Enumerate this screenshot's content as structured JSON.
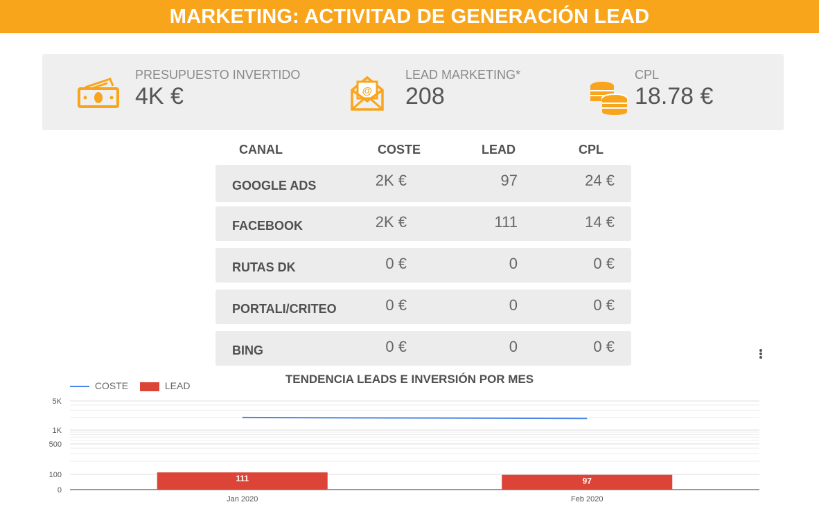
{
  "header": {
    "title": "MARKETING: ACTIVITAD DE GENERACIÓN LEAD"
  },
  "kpis": [
    {
      "label": "PRESUPUESTO INVERTIDO",
      "value": "4K €",
      "icon": "money-icon"
    },
    {
      "label": "LEAD MARKETING*",
      "value": "208",
      "icon": "email-icon"
    },
    {
      "label": "CPL",
      "value": "18.78 €",
      "icon": "coins-icon"
    }
  ],
  "table": {
    "headers": [
      "CANAL",
      "COSTE",
      "LEAD",
      "CPL"
    ],
    "rows": [
      {
        "canal": "GOOGLE ADS",
        "coste": "2K €",
        "lead": "97",
        "cpl": "24 €"
      },
      {
        "canal": "FACEBOOK",
        "coste": "2K €",
        "lead": "111",
        "cpl": "14 €"
      },
      {
        "canal": "RUTAS DK",
        "coste": "0 €",
        "lead": "0",
        "cpl": "0 €"
      },
      {
        "canal": "PORTALI/CRITEO",
        "coste": "0 €",
        "lead": "0",
        "cpl": "0 €"
      },
      {
        "canal": "BING",
        "coste": "0 €",
        "lead": "0",
        "cpl": "0 €"
      }
    ]
  },
  "colors": {
    "accent": "#f9a51b",
    "coste": "#4a86e8",
    "lead": "#db4437"
  },
  "chart_data": {
    "type": "bar",
    "title": "TENDENCIA LEADS E INVERSIÓN POR MES",
    "categories": [
      "Jan 2020",
      "Feb 2020"
    ],
    "series": [
      {
        "name": "COSTE",
        "type": "line",
        "values": [
          2000,
          1900
        ]
      },
      {
        "name": "LEAD",
        "type": "bar",
        "values": [
          111,
          97
        ]
      }
    ],
    "y_ticks": [
      "5K",
      "1K",
      "500",
      "100",
      "0"
    ],
    "y_scale": "log",
    "legend": "top-left"
  }
}
